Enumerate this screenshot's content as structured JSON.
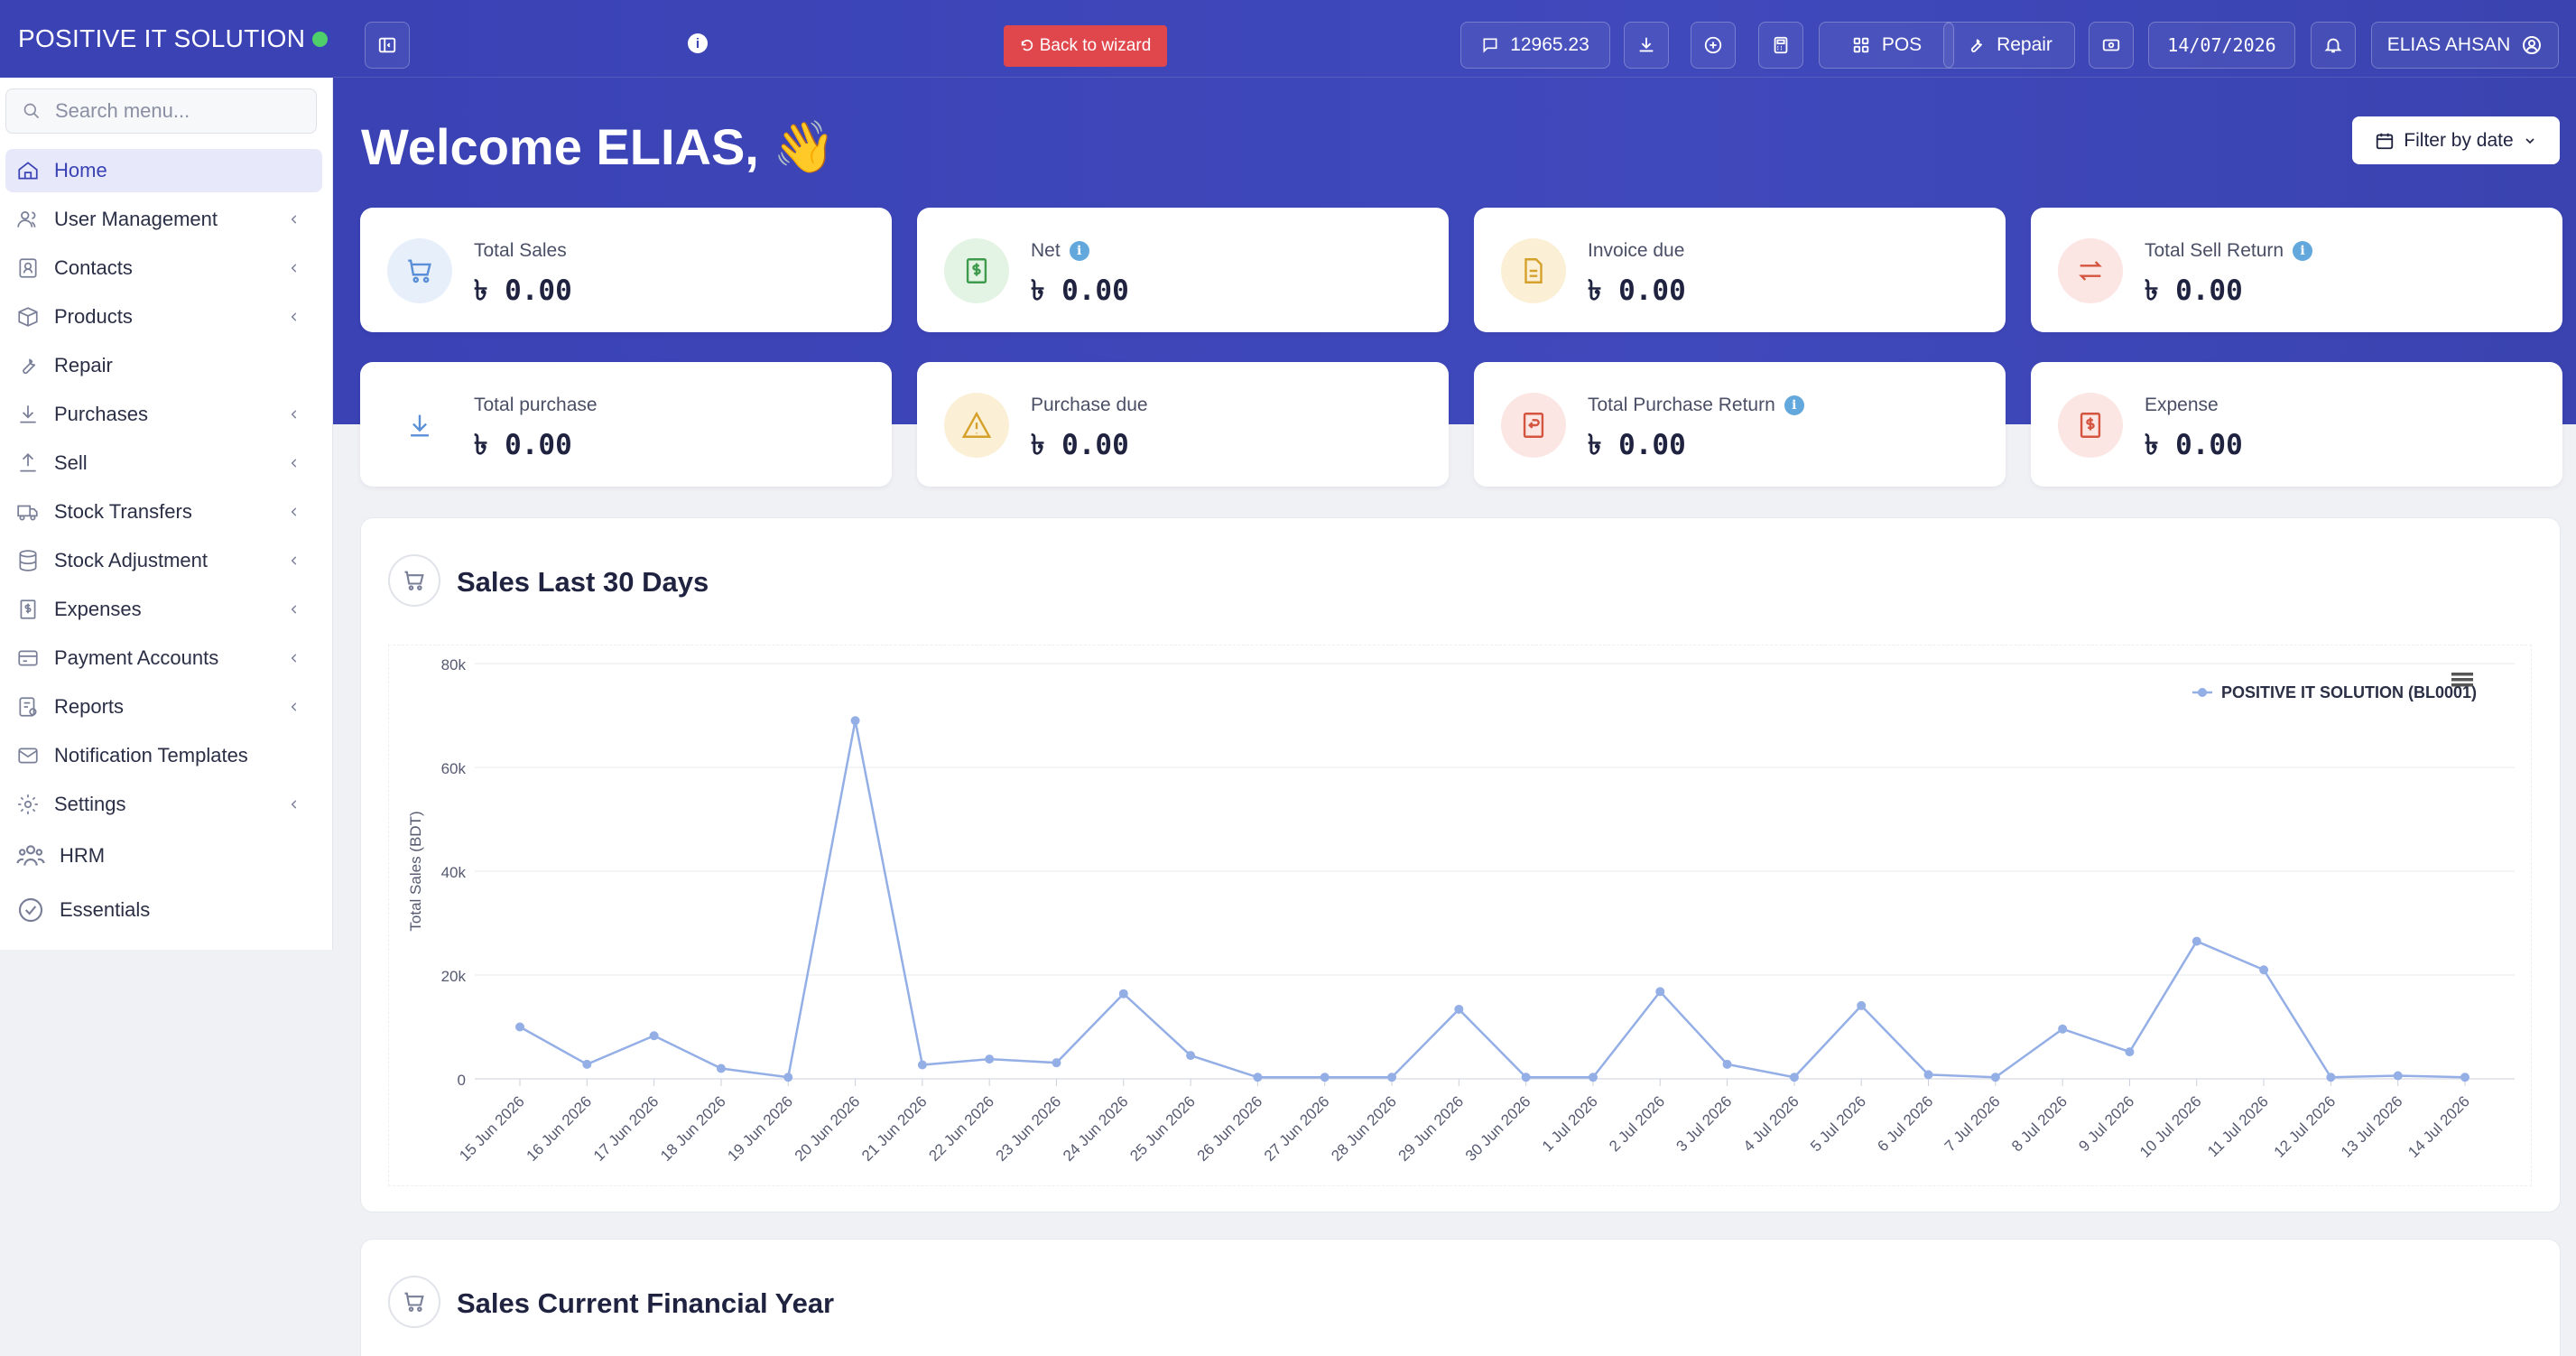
{
  "brand": {
    "name": "POSITIVE IT SOLUTION"
  },
  "sidebar": {
    "search_placeholder": "Search menu...",
    "items": [
      {
        "label": "Home",
        "icon": "home-icon",
        "active": true
      },
      {
        "label": "User Management",
        "icon": "users-icon",
        "has_children": true
      },
      {
        "label": "Contacts",
        "icon": "contacts-icon",
        "has_children": true
      },
      {
        "label": "Products",
        "icon": "box-icon",
        "has_children": true
      },
      {
        "label": "Repair",
        "icon": "wrench-icon"
      },
      {
        "label": "Purchases",
        "icon": "download-icon",
        "has_children": true
      },
      {
        "label": "Sell",
        "icon": "upload-icon",
        "has_children": true
      },
      {
        "label": "Stock Transfers",
        "icon": "truck-icon",
        "has_children": true
      },
      {
        "label": "Stock Adjustment",
        "icon": "database-icon",
        "has_children": true
      },
      {
        "label": "Expenses",
        "icon": "dollar-receipt-icon",
        "has_children": true
      },
      {
        "label": "Payment Accounts",
        "icon": "card-icon",
        "has_children": true
      },
      {
        "label": "Reports",
        "icon": "report-icon",
        "has_children": true
      },
      {
        "label": "Notification Templates",
        "icon": "mail-icon"
      },
      {
        "label": "Settings",
        "icon": "gear-icon",
        "has_children": true
      },
      {
        "label": "HRM",
        "icon": "team-icon"
      },
      {
        "label": "Essentials",
        "icon": "check-circle-icon"
      }
    ]
  },
  "topbar": {
    "back_label": "Back to wizard",
    "balance": "12965.23",
    "pos_label": "POS",
    "repair_label": "Repair",
    "date": "14/07/2026",
    "user": "ELIAS AHSAN"
  },
  "welcome": {
    "text": "Welcome ELIAS, 👋"
  },
  "filter": {
    "label": "Filter by date"
  },
  "cards": [
    {
      "label": "Total Sales",
      "value": "৳ 0.00",
      "icon": "cart-icon",
      "info": false
    },
    {
      "label": "Net",
      "value": "৳ 0.00",
      "icon": "money-icon",
      "info": true
    },
    {
      "label": "Invoice due",
      "value": "৳ 0.00",
      "icon": "file-icon",
      "info": false
    },
    {
      "label": "Total Sell Return",
      "value": "৳ 0.00",
      "icon": "swap-icon",
      "info": true
    },
    {
      "label": "Total purchase",
      "value": "৳ 0.00",
      "icon": "download-arrow-icon",
      "info": false
    },
    {
      "label": "Purchase due",
      "value": "৳ 0.00",
      "icon": "warning-icon",
      "info": false
    },
    {
      "label": "Total Purchase Return",
      "value": "৳ 0.00",
      "icon": "receipt-return-icon",
      "info": true
    },
    {
      "label": "Expense",
      "value": "৳ 0.00",
      "icon": "dollar-receipt-icon",
      "info": false
    }
  ],
  "panels": {
    "sales30": {
      "title": "Sales Last 30 Days"
    },
    "salesfy": {
      "title": "Sales Current Financial Year"
    }
  },
  "chart_data": {
    "type": "line",
    "title": "",
    "xlabel": "",
    "ylabel": "Total Sales (BDT)",
    "ylim": [
      0,
      80000
    ],
    "yticks": [
      "0",
      "20k",
      "40k",
      "60k",
      "80k"
    ],
    "legend_position": "top-right",
    "grid": true,
    "categories": [
      "15 Jun 2026",
      "16 Jun 2026",
      "17 Jun 2026",
      "18 Jun 2026",
      "19 Jun 2026",
      "20 Jun 2026",
      "21 Jun 2026",
      "22 Jun 2026",
      "23 Jun 2026",
      "24 Jun 2026",
      "25 Jun 2026",
      "26 Jun 2026",
      "27 Jun 2026",
      "28 Jun 2026",
      "29 Jun 2026",
      "30 Jun 2026",
      "1 Jul 2026",
      "2 Jul 2026",
      "3 Jul 2026",
      "4 Jul 2026",
      "5 Jul 2026",
      "6 Jul 2026",
      "7 Jul 2026",
      "8 Jul 2026",
      "9 Jul 2026",
      "10 Jul 2026",
      "11 Jul 2026",
      "12 Jul 2026",
      "13 Jul 2026",
      "14 Jul 2026"
    ],
    "series": [
      {
        "name": "POSITIVE IT SOLUTION (BL0001)",
        "color": "#94aee6",
        "values": [
          10000,
          2800,
          8300,
          2000,
          300,
          69000,
          2700,
          3800,
          3100,
          16400,
          4500,
          300,
          300,
          300,
          13400,
          300,
          300,
          16800,
          2800,
          300,
          14100,
          800,
          300,
          9600,
          5200,
          26500,
          21000,
          300,
          600,
          300
        ]
      }
    ]
  },
  "colors": {
    "primary": "#3a42b4",
    "danger": "#e0474d",
    "online": "#4fcf6a",
    "info": "#63a8dc"
  }
}
